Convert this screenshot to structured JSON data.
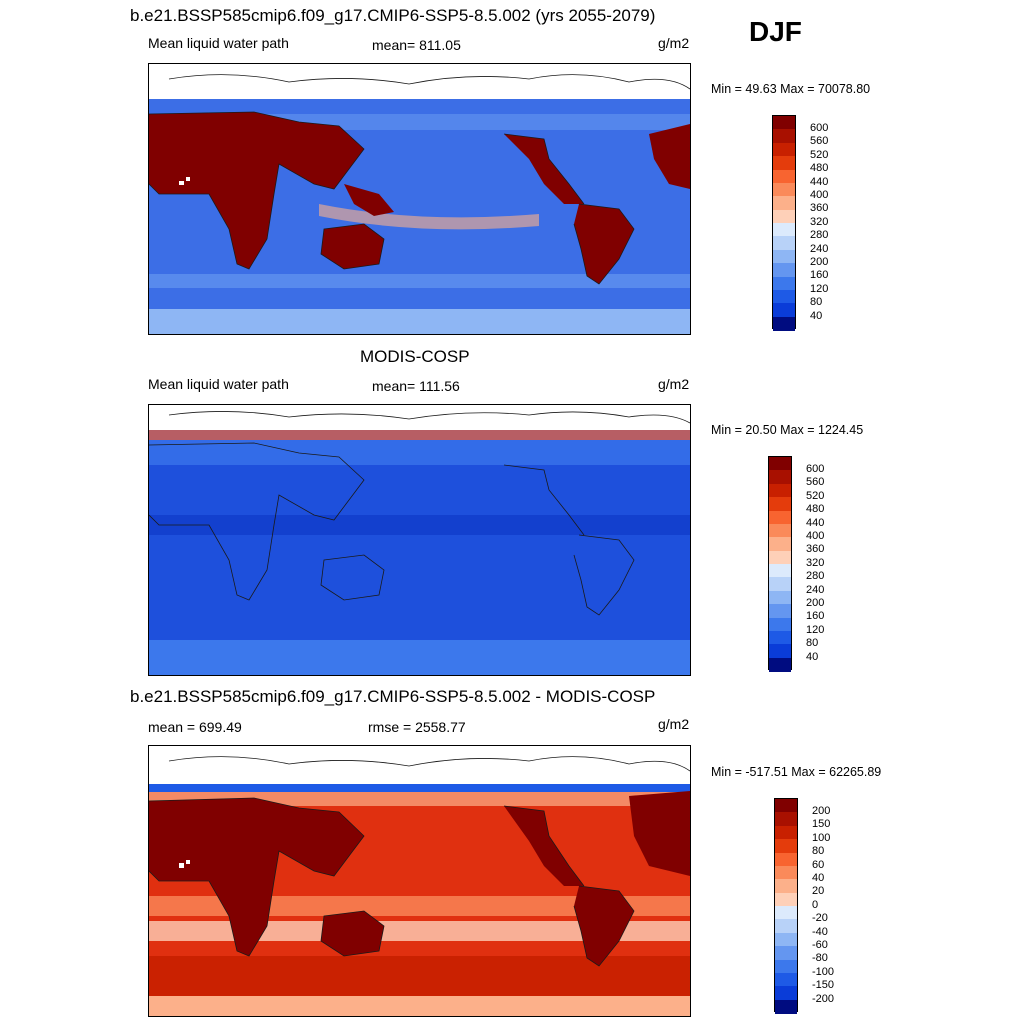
{
  "season": "DJF",
  "colors": {
    "warm": [
      "#800000",
      "#a81000",
      "#c82000",
      "#e43c0c",
      "#f86430",
      "#fa8a5a",
      "#fcb08a",
      "#fed0b8",
      "#fff0e6"
    ],
    "cool": [
      "#dceafc",
      "#b8d2f8",
      "#8eb6f4",
      "#6496f0",
      "#3c78ec",
      "#1e5ae6",
      "#0a3cd8",
      "#0022b4",
      "#000c80"
    ],
    "land": "#800000",
    "ocean_model": "#3c6ee6",
    "ocean_obs": "#1e50dc",
    "ocean_diff": "#e03010",
    "coast": "#1a1a1a"
  },
  "panels": [
    {
      "title": "b.e21.BSSP585cmip6.f09_g17.CMIP6-SSP5-8.5.002 (yrs 2055-2079)",
      "left_label": "Mean liquid water path",
      "center_label": "mean= 811.05",
      "units": "g/m2",
      "minmax": "Min =  49.63 Max = 70078.80",
      "colorbar_labels": [
        "600",
        "560",
        "520",
        "480",
        "440",
        "400",
        "360",
        "320",
        "280",
        "240",
        "200",
        "160",
        "120",
        "80",
        "40"
      ]
    },
    {
      "title": "MODIS-COSP",
      "left_label": "Mean liquid water path",
      "center_label": "mean= 111.56",
      "units": "g/m2",
      "minmax": "Min =  20.50 Max = 1224.45",
      "colorbar_labels": [
        "600",
        "560",
        "520",
        "480",
        "440",
        "400",
        "360",
        "320",
        "280",
        "240",
        "200",
        "160",
        "120",
        "80",
        "40"
      ]
    },
    {
      "title": "b.e21.BSSP585cmip6.f09_g17.CMIP6-SSP5-8.5.002 - MODIS-COSP",
      "left_label": "mean = 699.49",
      "center_label": "rmse = 2558.77",
      "units": "g/m2",
      "minmax": "Min = -517.51 Max = 62265.89",
      "colorbar_labels": [
        "200",
        "150",
        "100",
        "80",
        "60",
        "40",
        "20",
        "0",
        "-20",
        "-40",
        "-60",
        "-80",
        "-100",
        "-150",
        "-200"
      ]
    }
  ]
}
